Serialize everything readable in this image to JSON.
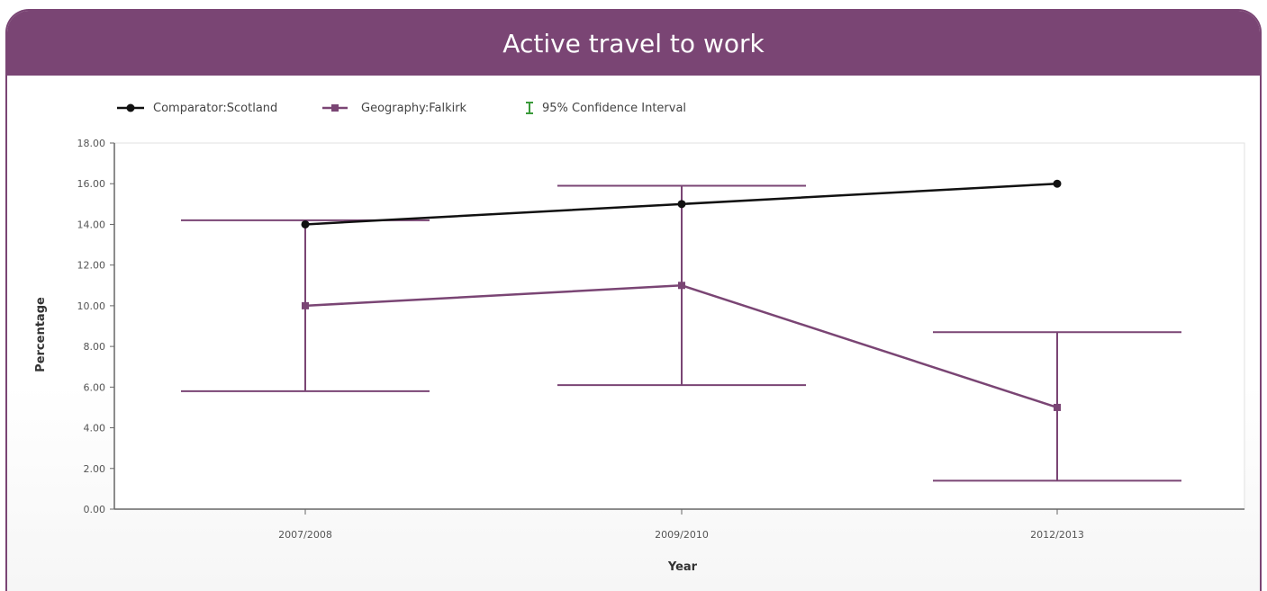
{
  "header": {
    "title": "Active travel to work"
  },
  "colors": {
    "header_bg": "#7a4574",
    "comparator": "#111111",
    "geography": "#7a4574",
    "ci_legend": "#3a9a3a",
    "axis": "#555555"
  },
  "legend": {
    "items": [
      {
        "label": "Comparator:Scotland",
        "icon": "line-circle-marker-icon"
      },
      {
        "label": "Geography:Falkirk",
        "icon": "line-square-marker-icon"
      },
      {
        "label": "95% Confidence Interval",
        "icon": "error-bar-icon"
      }
    ]
  },
  "chart_data": {
    "type": "line",
    "title": "Active travel to work",
    "xlabel": "Year",
    "ylabel": "Percentage",
    "categories": [
      "2007/2008",
      "2009/2010",
      "2012/2013"
    ],
    "ylim": [
      0,
      18
    ],
    "yticks": [
      "0.00",
      "2.00",
      "4.00",
      "6.00",
      "8.00",
      "10.00",
      "12.00",
      "14.00",
      "16.00",
      "18.00"
    ],
    "grid": false,
    "legend_position": "top-left",
    "series": [
      {
        "name": "Comparator:Scotland",
        "values": [
          14.0,
          15.0,
          16.0
        ],
        "marker": "circle"
      },
      {
        "name": "Geography:Falkirk",
        "values": [
          10.0,
          11.0,
          5.0
        ],
        "marker": "square",
        "ci_lower": [
          5.8,
          6.1,
          1.4
        ],
        "ci_upper": [
          14.2,
          15.9,
          8.7
        ]
      }
    ]
  }
}
